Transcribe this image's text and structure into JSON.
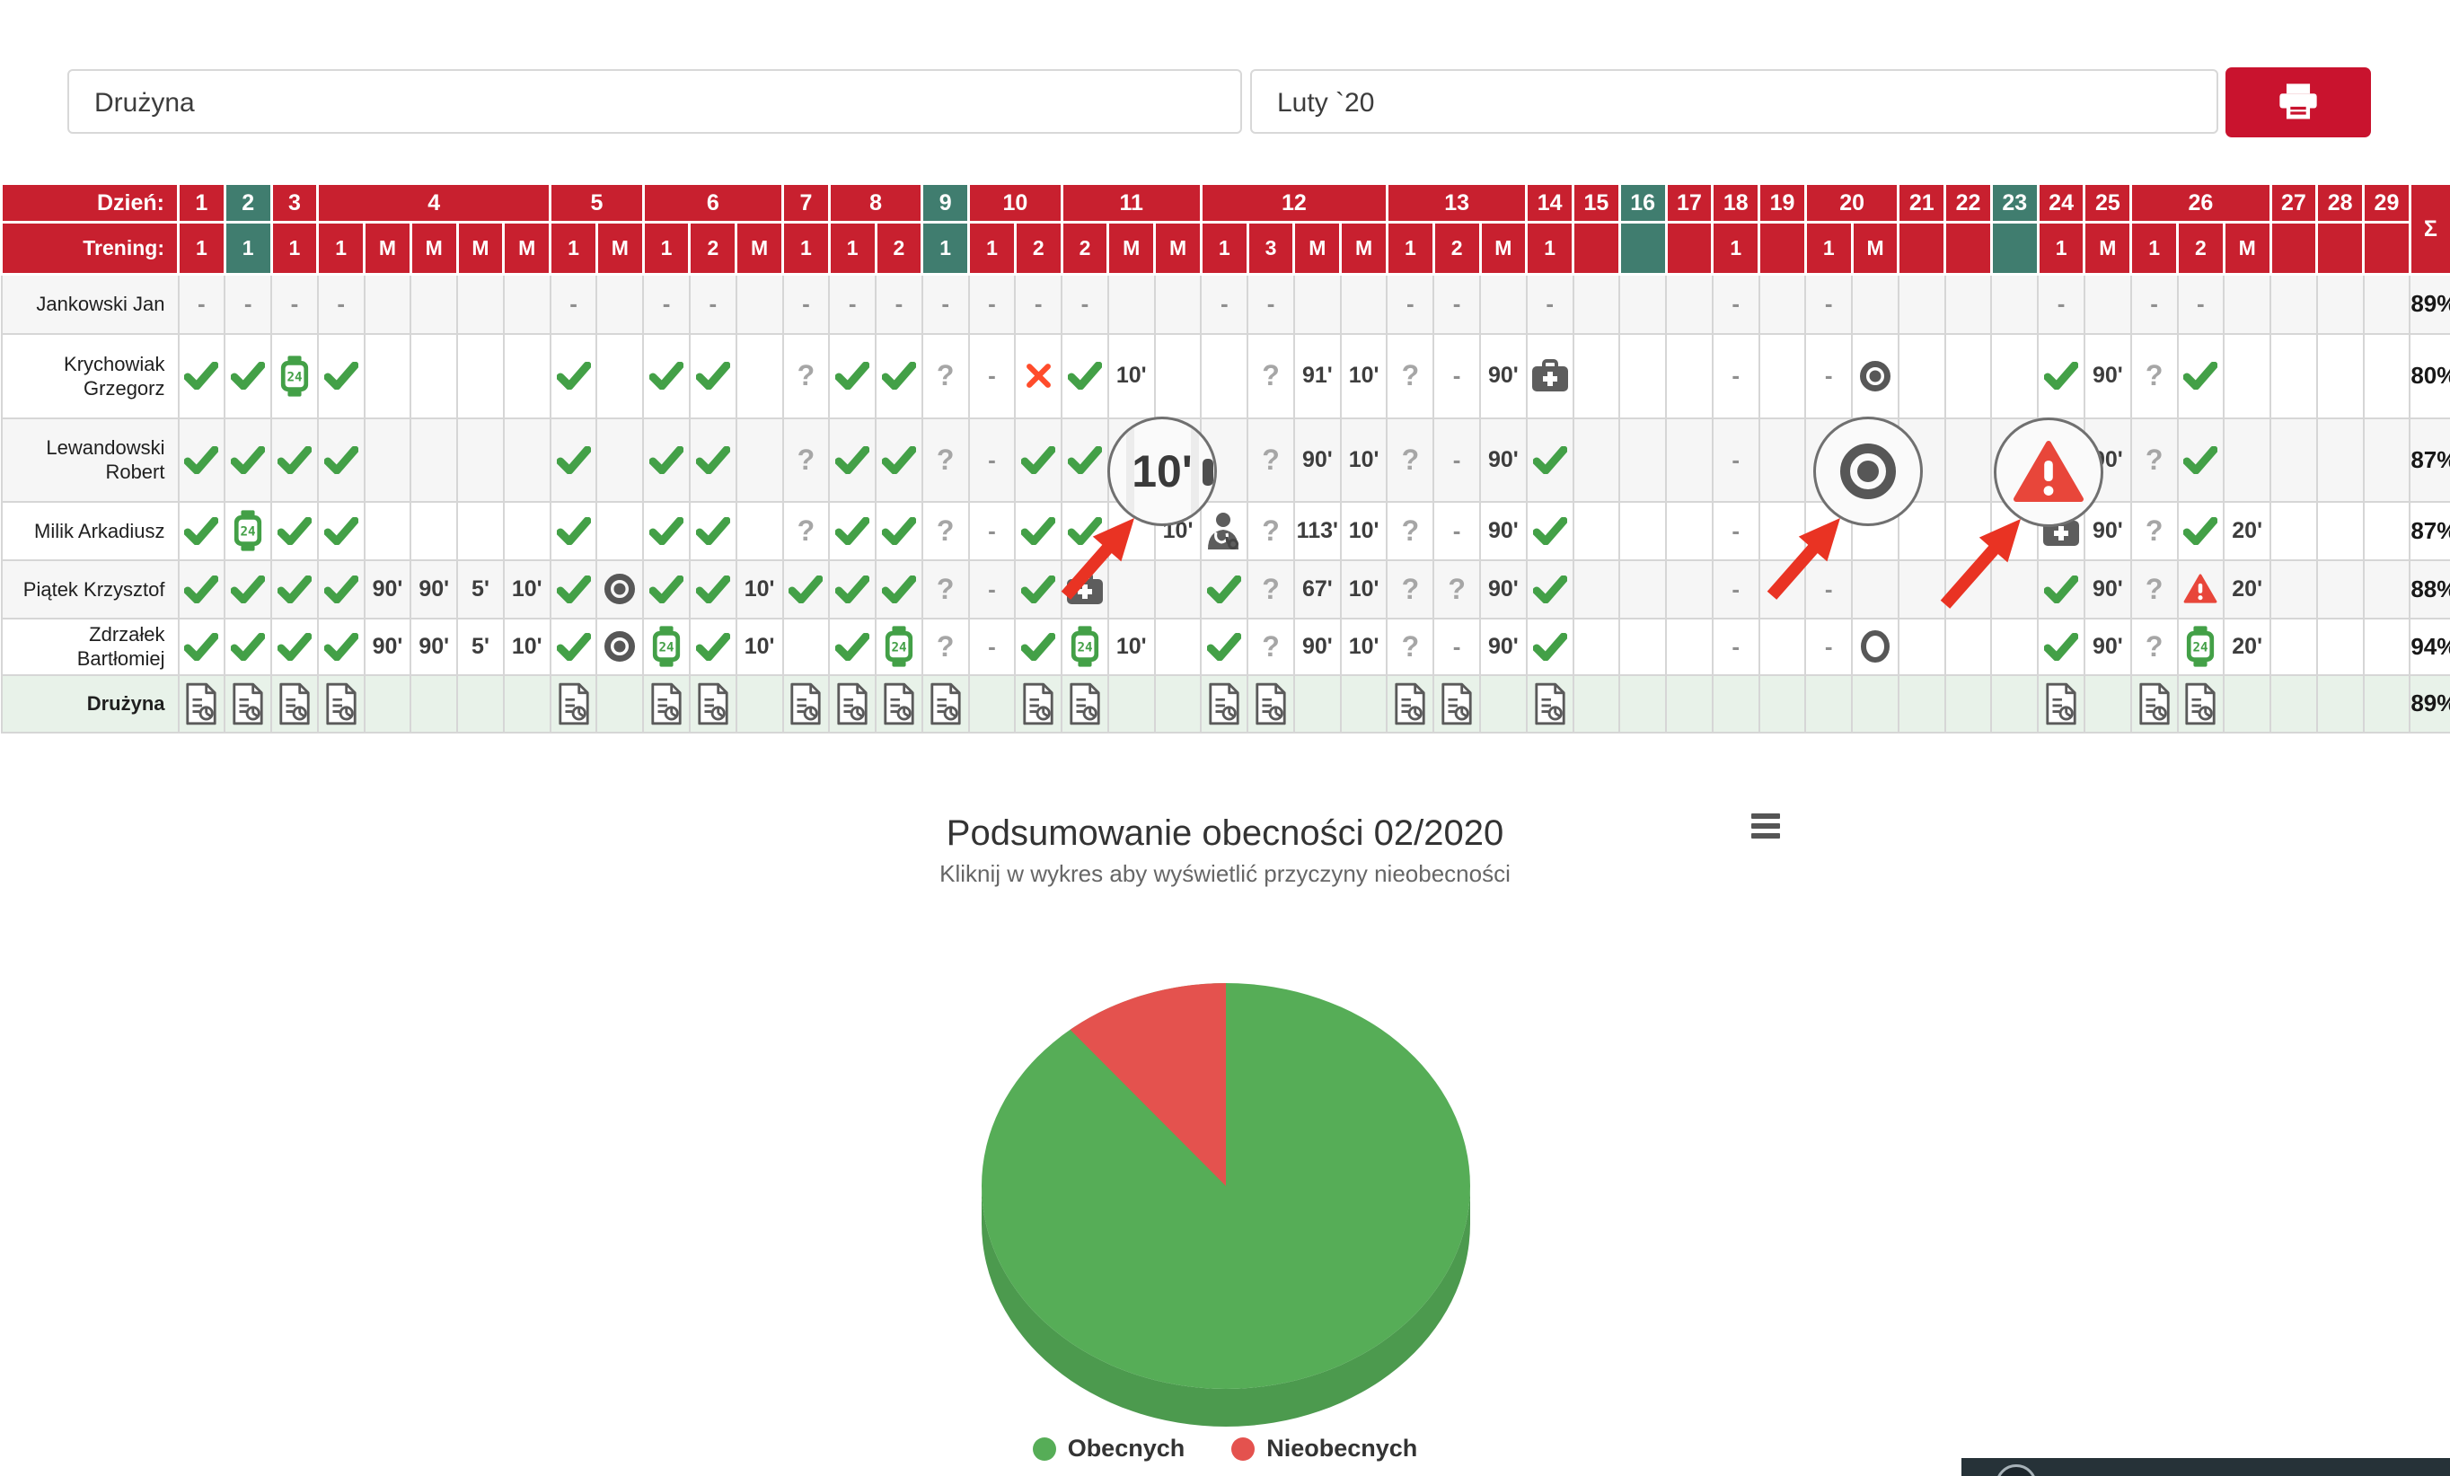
{
  "toolbar": {
    "team_filter": "Drużyna",
    "month_filter": "Luty `20"
  },
  "attendance_table": {
    "day_header_label": "Dzień:",
    "training_header_label": "Trening:",
    "sum_symbol": "Σ",
    "days": [
      {
        "day": "1",
        "teal": false,
        "trainings": [
          "1"
        ]
      },
      {
        "day": "2",
        "teal": true,
        "trainings": [
          "1"
        ]
      },
      {
        "day": "3",
        "teal": false,
        "trainings": [
          "1"
        ]
      },
      {
        "day": "4",
        "teal": false,
        "trainings": [
          "1",
          "M",
          "M",
          "M",
          "M"
        ]
      },
      {
        "day": "5",
        "teal": false,
        "trainings": [
          "1",
          "M"
        ]
      },
      {
        "day": "6",
        "teal": false,
        "trainings": [
          "1",
          "2",
          "M"
        ]
      },
      {
        "day": "7",
        "teal": false,
        "trainings": [
          "1"
        ]
      },
      {
        "day": "8",
        "teal": false,
        "trainings": [
          "1",
          "2"
        ]
      },
      {
        "day": "9",
        "teal": true,
        "trainings": [
          "1"
        ]
      },
      {
        "day": "10",
        "teal": false,
        "trainings": [
          "1",
          "2"
        ]
      },
      {
        "day": "11",
        "teal": false,
        "trainings": [
          "2",
          "M",
          "M"
        ]
      },
      {
        "day": "12",
        "teal": false,
        "trainings": [
          "1",
          "3",
          "M",
          "M"
        ]
      },
      {
        "day": "13",
        "teal": false,
        "trainings": [
          "1",
          "2",
          "M"
        ]
      },
      {
        "day": "14",
        "teal": false,
        "trainings": [
          "1"
        ]
      },
      {
        "day": "15",
        "teal": false,
        "trainings": [
          ""
        ]
      },
      {
        "day": "16",
        "teal": true,
        "trainings": [
          ""
        ]
      },
      {
        "day": "17",
        "teal": false,
        "trainings": [
          ""
        ]
      },
      {
        "day": "18",
        "teal": false,
        "trainings": [
          "1"
        ]
      },
      {
        "day": "19",
        "teal": false,
        "trainings": [
          ""
        ]
      },
      {
        "day": "20",
        "teal": false,
        "trainings": [
          "1",
          "M"
        ]
      },
      {
        "day": "21",
        "teal": false,
        "trainings": [
          ""
        ]
      },
      {
        "day": "22",
        "teal": false,
        "trainings": [
          ""
        ]
      },
      {
        "day": "23",
        "teal": true,
        "trainings": [
          ""
        ]
      },
      {
        "day": "24",
        "teal": false,
        "trainings": [
          "1"
        ]
      },
      {
        "day": "25",
        "teal": false,
        "trainings": [
          "M"
        ]
      },
      {
        "day": "26",
        "teal": false,
        "trainings": [
          "1",
          "2",
          "M"
        ]
      },
      {
        "day": "27",
        "teal": false,
        "trainings": [
          ""
        ]
      },
      {
        "day": "28",
        "teal": false,
        "trainings": [
          ""
        ]
      },
      {
        "day": "29",
        "teal": false,
        "trainings": [
          ""
        ]
      }
    ],
    "players": [
      {
        "name": "Jankowski Jan",
        "attendance_pct": "89%",
        "cells": [
          "-",
          "-",
          "-",
          "-",
          "",
          "",
          "",
          "",
          "-",
          "",
          "-",
          "-",
          "",
          "-",
          "-",
          "-",
          "-",
          "-",
          "-",
          "-",
          "",
          "",
          "-",
          "-",
          "",
          "",
          "-",
          "-",
          "",
          "-",
          "",
          "",
          "",
          "-",
          "",
          "-",
          "",
          "",
          "",
          "",
          "-",
          "",
          "-",
          "-",
          "",
          "",
          "",
          ""
        ]
      },
      {
        "name": "Krychowiak Grzegorz",
        "attendance_pct": "80%",
        "cells": [
          "@check",
          "@check",
          "@watch24",
          "@check",
          "",
          "",
          "",
          "",
          "@check",
          "",
          "@check",
          "@check",
          "",
          "?",
          "@check",
          "@check",
          "?",
          "-",
          "@x",
          "@check",
          "10'",
          "",
          "",
          "?",
          "91'",
          "10'",
          "?",
          "-",
          "90'",
          "@firstaid",
          "",
          "",
          "",
          "-",
          "",
          "-",
          "@target",
          "",
          "",
          "",
          "@check",
          "90'",
          "?",
          "@check",
          "",
          "",
          "",
          ""
        ]
      },
      {
        "name": "Lewandowski Robert",
        "attendance_pct": "87%",
        "cells": [
          "@check",
          "@check",
          "@check",
          "@check",
          "",
          "",
          "",
          "",
          "@check",
          "",
          "@check",
          "@check",
          "",
          "?",
          "@check",
          "@check",
          "?",
          "-",
          "@check",
          "@check",
          "",
          "",
          "",
          "?",
          "90'",
          "10'",
          "?",
          "-",
          "90'",
          "@check",
          "",
          "",
          "",
          "-",
          "",
          "",
          "",
          "",
          "",
          "",
          "",
          "90'",
          "?",
          "@check",
          "",
          "",
          "",
          ""
        ]
      },
      {
        "name": "Milik Arkadiusz",
        "attendance_pct": "87%",
        "cells": [
          "@check",
          "@watch24",
          "@check",
          "@check",
          "",
          "",
          "",
          "",
          "@check",
          "",
          "@check",
          "@check",
          "",
          "?",
          "@check",
          "@check",
          "?",
          "-",
          "@check",
          "@check",
          "",
          "10'",
          "@doctor",
          "?",
          "113'",
          "10'",
          "?",
          "-",
          "90'",
          "@check",
          "",
          "",
          "",
          "-",
          "",
          "-",
          "",
          "",
          "",
          "",
          "@firstaid",
          "90'",
          "?",
          "@check",
          "20'",
          "",
          "",
          ""
        ]
      },
      {
        "name": "Piątek Krzysztof",
        "attendance_pct": "88%",
        "cells": [
          "@check",
          "@check",
          "@check",
          "@check",
          "90'",
          "90'",
          "5'",
          "10'",
          "@check",
          "@target",
          "@check",
          "@check",
          "10'",
          "@check",
          "@check",
          "@check",
          "?",
          "-",
          "@check",
          "@firstaid",
          "",
          "",
          "@check",
          "?",
          "67'",
          "10'",
          "?",
          "?",
          "90'",
          "@check",
          "",
          "",
          "",
          "-",
          "",
          "-",
          "",
          "",
          "",
          "",
          "@check",
          "90'",
          "?",
          "@warning",
          "20'",
          "",
          "",
          ""
        ]
      },
      {
        "name": "Zdrzałek Bartłomiej",
        "attendance_pct": "94%",
        "cells": [
          "@check",
          "@check",
          "@check",
          "@check",
          "90'",
          "90'",
          "5'",
          "10'",
          "@check",
          "@target",
          "@watch24",
          "@check",
          "10'",
          "",
          "@check",
          "@watch24",
          "?",
          "-",
          "@check",
          "@watch24",
          "10'",
          "",
          "@check",
          "?",
          "90'",
          "10'",
          "?",
          "-",
          "90'",
          "@check",
          "",
          "",
          "",
          "-",
          "",
          "-",
          "@target-open",
          "",
          "",
          "",
          "@check",
          "90'",
          "?",
          "@watch24",
          "20'",
          "",
          "",
          ""
        ]
      }
    ],
    "team_row": {
      "label": "Drużyna",
      "attendance_pct": "89%",
      "report_columns": [
        0,
        1,
        2,
        3,
        8,
        10,
        11,
        13,
        14,
        15,
        16,
        18,
        19,
        22,
        23,
        26,
        27,
        29,
        40,
        42,
        43
      ]
    }
  },
  "chart_data": {
    "type": "pie",
    "title": "Podsumowanie obecności 02/2020",
    "subtitle": "Kliknij w wykres aby wyświetlić przyczyny nieobecności",
    "labels": [
      "Obecnych",
      "Nieobecnych"
    ],
    "values": [
      89,
      11
    ],
    "unit": "%",
    "colors": [
      "#56ad57",
      "#e4524e"
    ],
    "side_color": "#4c9a4e",
    "legend_position": "bottom",
    "style": "3d-pie"
  },
  "overlays": {
    "magnifiers": [
      {
        "content": "10'"
      },
      {
        "content": "match-played-target"
      },
      {
        "content": "warning-triangle"
      }
    ],
    "arrow_color": "#e93323"
  },
  "theme": {
    "header_red": "#c8202f",
    "sunday_teal": "#407d6f",
    "team_row_green": "#e8f2e9",
    "check_green": "#43a047",
    "absent_red": "#ff4c2b",
    "warning_red": "#e8463a",
    "print_button_red": "#c9132e",
    "widget_dark": "#263238"
  }
}
